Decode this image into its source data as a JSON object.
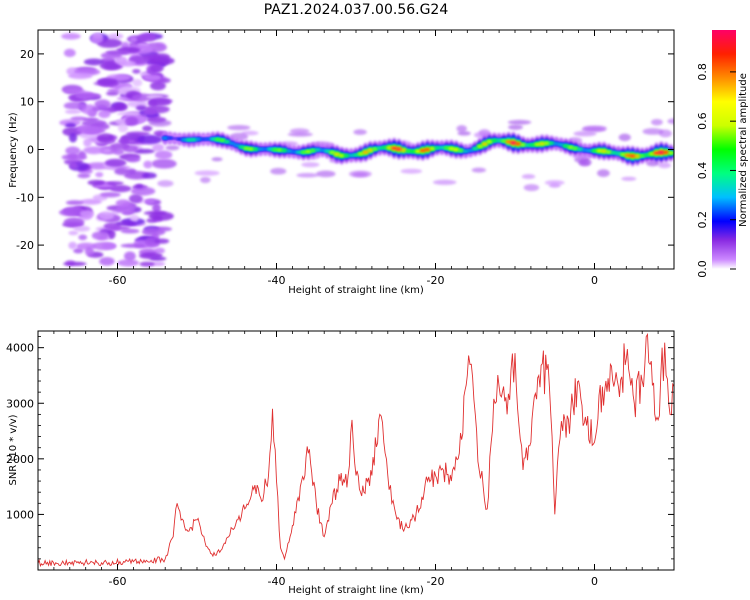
{
  "title": "PAZ1.2024.037.00.56.G24",
  "chart_data": [
    {
      "type": "heatmap",
      "xlabel": "Height of straight line (km)",
      "ylabel": "Frequency (Hz)",
      "xlim": [
        -70,
        10
      ],
      "ylim": [
        -25,
        25
      ],
      "xticks": [
        -60,
        -40,
        -20,
        0
      ],
      "yticks": [
        -20,
        -10,
        0,
        10,
        20
      ],
      "colorbar": {
        "label": "Normalized spectral amplitude",
        "range": [
          0,
          0.97
        ],
        "ticks": [
          0.0,
          0.2,
          0.4,
          0.6,
          0.8
        ],
        "tick_labels": [
          "0.0",
          "0.2",
          "0.4",
          "0.6",
          "0.8"
        ],
        "colormap": "rainbow (purple to red)"
      },
      "ridge": {
        "x": [
          -54,
          -50,
          -45,
          -40,
          -35,
          -32,
          -28,
          -24,
          -20,
          -16,
          -13,
          -10,
          -6,
          -2,
          2,
          6,
          10
        ],
        "y": [
          2,
          2.5,
          1,
          -0.5,
          0,
          -1.5,
          0,
          0,
          0,
          0,
          1.5,
          1.5,
          1,
          0.5,
          -1,
          -1,
          -1
        ],
        "amplitude": [
          0.3,
          0.4,
          0.55,
          0.5,
          0.55,
          0.65,
          0.7,
          0.9,
          0.75,
          0.55,
          0.7,
          0.9,
          0.6,
          0.5,
          0.7,
          0.85,
          0.95
        ]
      },
      "noise_region": {
        "x": [
          -70,
          -54
        ],
        "amplitude": [
          0,
          0.1
        ]
      }
    },
    {
      "type": "line",
      "xlabel": "Height of straight line (km)",
      "ylabel": "SNR (10 * v/v)",
      "xlim": [
        -70,
        10
      ],
      "ylim": [
        0,
        4300
      ],
      "xticks": [
        -60,
        -40,
        -20,
        0
      ],
      "yticks": [
        1000,
        2000,
        3000,
        4000
      ],
      "color": "#e03030",
      "series": [
        {
          "x": [
            -70,
            -66,
            -62,
            -58,
            -54,
            -53,
            -52.5,
            -52,
            -51,
            -50,
            -49,
            -48,
            -47,
            -46,
            -45,
            -44,
            -43,
            -42,
            -41,
            -40.5,
            -40,
            -39.5,
            -39,
            -38,
            -37,
            -36,
            -35,
            -34,
            -33,
            -32,
            -31,
            -30.5,
            -30,
            -29,
            -28,
            -27,
            -26.5,
            -26,
            -25.5,
            -25,
            -24,
            -23,
            -22,
            -21,
            -20,
            -19,
            -18,
            -17,
            -16,
            -15.5,
            -15,
            -14.5,
            -14,
            -13.5,
            -13,
            -12.5,
            -12,
            -11,
            -10.5,
            -10,
            -9.5,
            -9,
            -8,
            -7,
            -6,
            -5.5,
            -5,
            -4.5,
            -4,
            -3,
            -2,
            -1,
            0,
            1,
            2,
            3,
            4,
            5,
            6,
            6.5,
            7,
            8,
            8.5,
            9,
            9.5,
            10
          ],
          "y": [
            120,
            140,
            130,
            150,
            200,
            600,
            1200,
            900,
            700,
            900,
            500,
            250,
            350,
            600,
            900,
            1100,
            1500,
            1300,
            1700,
            2900,
            1600,
            400,
            200,
            800,
            1500,
            2100,
            1200,
            600,
            1200,
            1600,
            1700,
            2700,
            1700,
            1400,
            1700,
            2800,
            2300,
            1700,
            1200,
            1000,
            700,
            900,
            1100,
            1600,
            1700,
            1800,
            1600,
            2100,
            3500,
            3700,
            2800,
            1800,
            1500,
            1100,
            2300,
            3000,
            3300,
            2800,
            3600,
            3900,
            2600,
            1800,
            2300,
            3500,
            3600,
            2800,
            1000,
            2200,
            2500,
            2800,
            3400,
            2600,
            2300,
            3300,
            3700,
            3300,
            3800,
            3000,
            3400,
            4200,
            3700,
            2700,
            4000,
            3500,
            2800,
            3300
          ]
        }
      ]
    }
  ]
}
